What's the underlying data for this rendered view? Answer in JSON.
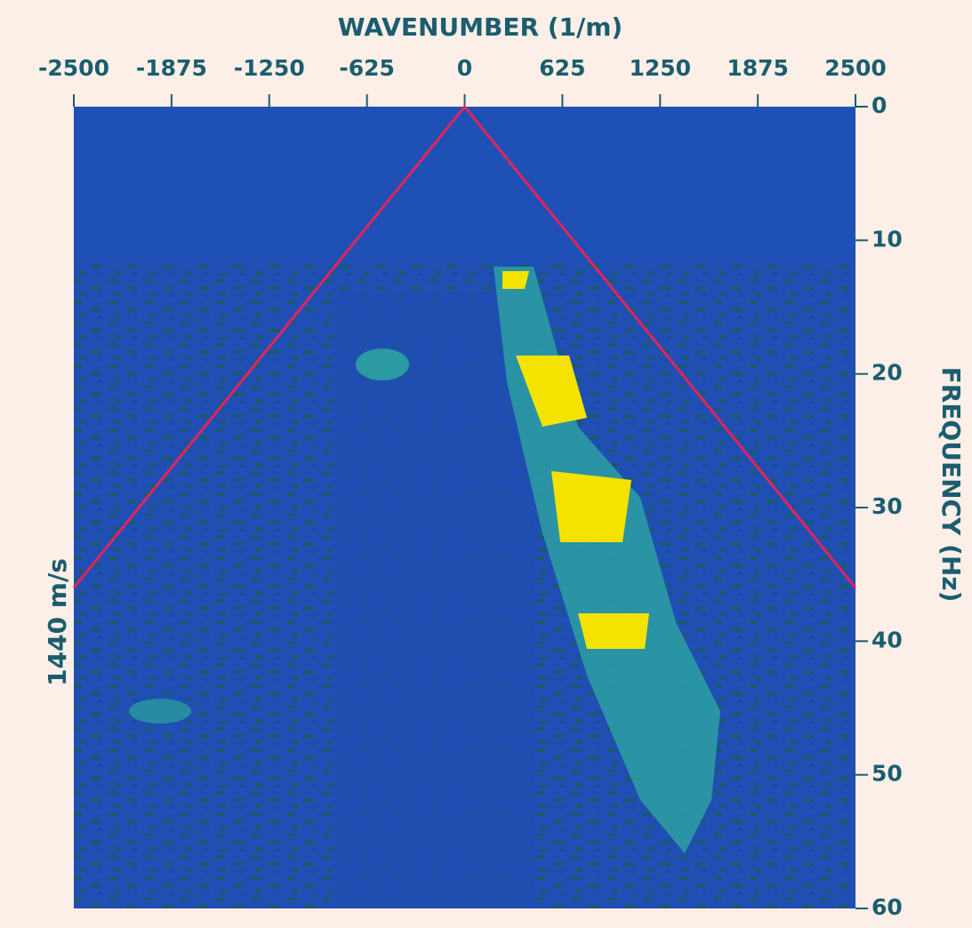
{
  "chart_data": {
    "type": "line",
    "title": "WAVENUMBER (1/m)",
    "y_label": "FREQUENCY (Hz)",
    "annotation": "1440 m/s",
    "x": [
      -2500,
      0,
      2500
    ],
    "series": [
      {
        "color": "#e2245c",
        "values": [
          36,
          0,
          36
        ]
      }
    ],
    "xlim": [
      -2500,
      2500
    ],
    "xticks": [
      -2500,
      -1875,
      -1250,
      -625,
      0,
      625,
      1250,
      1875,
      2500
    ],
    "ylim": [
      0,
      60
    ],
    "yticks": [
      0,
      10,
      20,
      30,
      40,
      50,
      60
    ],
    "y_reversed": true
  }
}
